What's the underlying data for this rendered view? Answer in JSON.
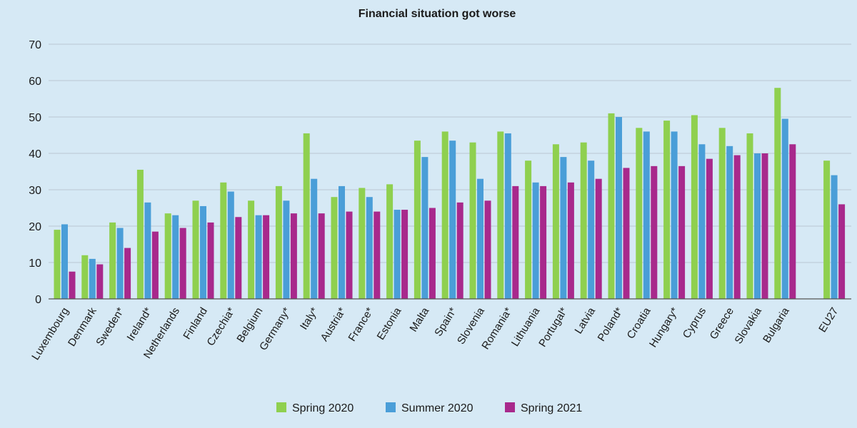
{
  "chart_data": {
    "type": "bar",
    "title": "Financial situation got worse",
    "xlabel": "",
    "ylabel": "",
    "ylim": [
      0,
      70
    ],
    "yticks": [
      0,
      10,
      20,
      30,
      40,
      50,
      60,
      70
    ],
    "grid": true,
    "legend_position": "bottom",
    "categories": [
      "Luxembourg",
      "Denmark",
      "Sweden*",
      "Ireland*",
      "Netherlands",
      "Finland",
      "Czechia*",
      "Belgium",
      "Germany*",
      "Italy*",
      "Austria*",
      "France*",
      "Estonia",
      "Malta",
      "Spain*",
      "Slovenia",
      "Romania*",
      "Lithuania",
      "Portugal*",
      "Latvia",
      "Poland*",
      "Croatia",
      "Hungary*",
      "Cyprus",
      "Greece",
      "Slovakia",
      "Bulgaria",
      "EU27"
    ],
    "series": [
      {
        "name": "Spring 2020",
        "color": "#8fd04f",
        "values": [
          19,
          12,
          21,
          35.5,
          23.5,
          27,
          32,
          27,
          31,
          45.5,
          28,
          30.5,
          31.5,
          43.5,
          46,
          43,
          46,
          38,
          42.5,
          43,
          51,
          47,
          49,
          50.5,
          47,
          45.5,
          58,
          38
        ]
      },
      {
        "name": "Summer 2020",
        "color": "#4a9ed8",
        "values": [
          20.5,
          11,
          19.5,
          26.5,
          23,
          25.5,
          29.5,
          23,
          27,
          33,
          31,
          28,
          24.5,
          39,
          43.5,
          33,
          45.5,
          32,
          39,
          38,
          50,
          46,
          46,
          42.5,
          42,
          40,
          49.5,
          34
        ]
      },
      {
        "name": "Spring 2021",
        "color": "#a8298c",
        "values": [
          7.5,
          9.5,
          14,
          18.5,
          19.5,
          21,
          22.5,
          23,
          23.5,
          23.5,
          24,
          24,
          24.5,
          25,
          26.5,
          27,
          31,
          31,
          32,
          33,
          36,
          36.5,
          36.5,
          38.5,
          39.5,
          40,
          42.5,
          26
        ]
      }
    ]
  }
}
